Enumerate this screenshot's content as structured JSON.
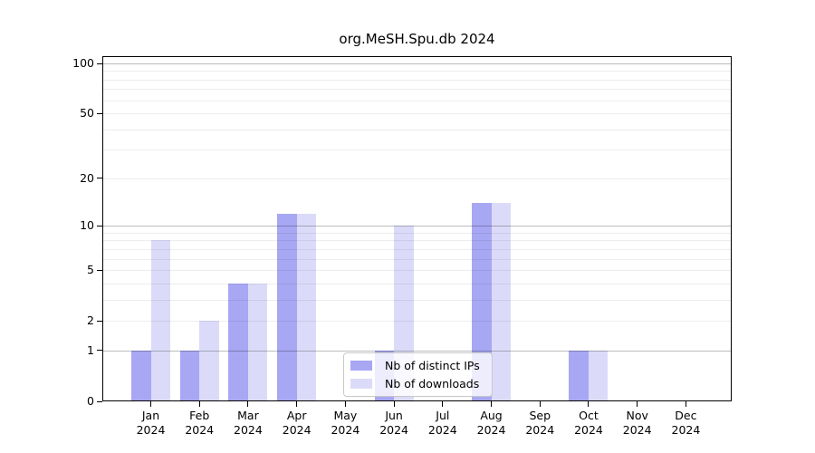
{
  "chart_data": {
    "type": "bar",
    "title": "org.MeSH.Spu.db 2024",
    "categories": [
      {
        "month": "Jan",
        "year": "2024"
      },
      {
        "month": "Feb",
        "year": "2024"
      },
      {
        "month": "Mar",
        "year": "2024"
      },
      {
        "month": "Apr",
        "year": "2024"
      },
      {
        "month": "May",
        "year": "2024"
      },
      {
        "month": "Jun",
        "year": "2024"
      },
      {
        "month": "Jul",
        "year": "2024"
      },
      {
        "month": "Aug",
        "year": "2024"
      },
      {
        "month": "Sep",
        "year": "2024"
      },
      {
        "month": "Oct",
        "year": "2024"
      },
      {
        "month": "Nov",
        "year": "2024"
      },
      {
        "month": "Dec",
        "year": "2024"
      }
    ],
    "series": [
      {
        "name": "Nb of distinct IPs",
        "color": "#a7a7f3",
        "values": [
          1,
          1,
          4,
          12,
          0,
          1,
          0,
          14,
          0,
          1,
          0,
          0
        ]
      },
      {
        "name": "Nb of downloads",
        "color": "#dbdbf9",
        "values": [
          8,
          2,
          4,
          12,
          0,
          10,
          0,
          14,
          0,
          1,
          0,
          0
        ]
      }
    ],
    "y_axis": {
      "scale": "log1p",
      "tick_values": [
        100,
        50,
        20,
        10,
        5,
        2,
        1,
        0
      ],
      "minor_gridlines": [
        2,
        3,
        4,
        5,
        6,
        7,
        8,
        9,
        20,
        30,
        40,
        50,
        60,
        70,
        80,
        90
      ],
      "major_gridlines": [
        1,
        10,
        100
      ],
      "ylim": [
        0,
        100
      ],
      "grid": true
    },
    "x_axis": {
      "label_line_2": "2024"
    },
    "legend": {
      "position": "bottom-center",
      "entries": [
        "Nb of distinct IPs",
        "Nb of downloads"
      ]
    }
  },
  "figure": {
    "background": "#ffffff",
    "spine_color": "#000000",
    "legend_border_color": "#c8c8c8"
  }
}
